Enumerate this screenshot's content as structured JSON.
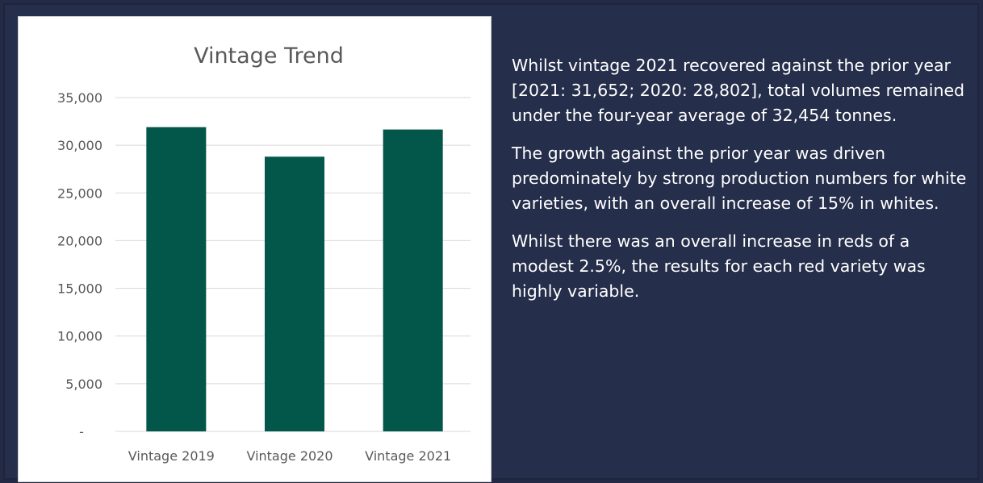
{
  "chart_data": {
    "type": "bar",
    "title": "Vintage Trend",
    "categories": [
      "Vintage 2019",
      "Vintage 2020",
      "Vintage 2021"
    ],
    "values": [
      31900,
      28802,
      31652
    ],
    "ylim": [
      0,
      35000
    ],
    "yticks": [
      {
        "value": 0,
        "label": "-"
      },
      {
        "value": 5000,
        "label": "5,000"
      },
      {
        "value": 10000,
        "label": "10,000"
      },
      {
        "value": 15000,
        "label": "15,000"
      },
      {
        "value": 20000,
        "label": "20,000"
      },
      {
        "value": 25000,
        "label": "25,000"
      },
      {
        "value": 30000,
        "label": "30,000"
      },
      {
        "value": 35000,
        "label": "35,000"
      }
    ],
    "grid": true,
    "legend": "none",
    "bar_color": "#03574a"
  },
  "commentary": {
    "paragraphs": [
      "Whilst vintage 2021 recovered against the prior year [2021: 31,652; 2020: 28,802], total volumes remained under the four-year average of 32,454 tonnes.",
      "The growth against the prior year was driven predominately by strong production numbers for white varieties, with an overall increase of 15% in whites.",
      "Whilst there was an overall increase in reds of a modest 2.5%, the results for each red variety was highly variable."
    ]
  },
  "colors": {
    "background": "#222a45",
    "text": "#ffffff",
    "grid": "#d9d9d9",
    "axis_text": "#595959"
  }
}
